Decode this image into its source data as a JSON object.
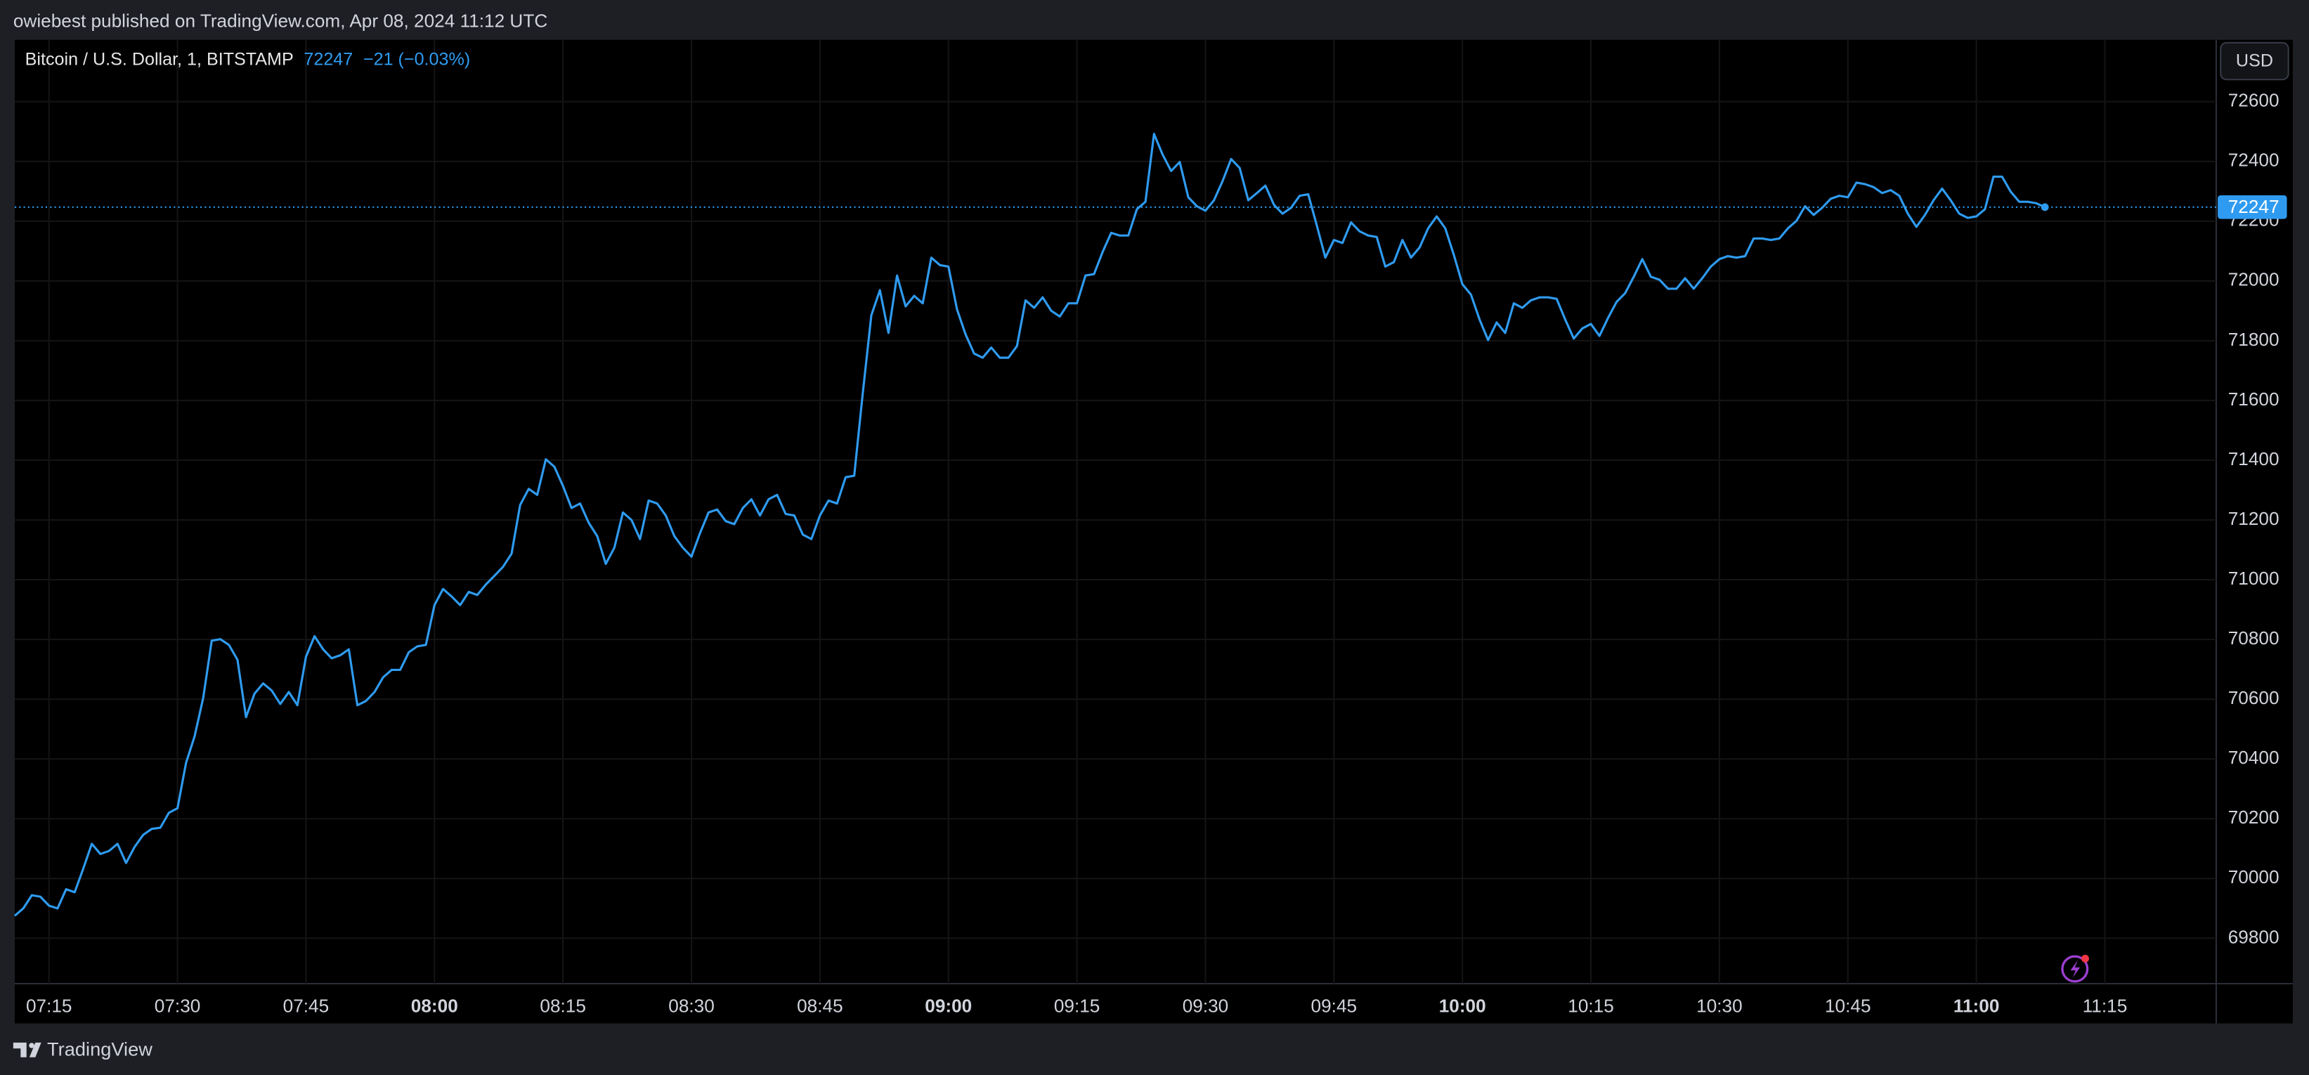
{
  "header": {
    "publisher": "owiebest published on TradingView.com, Apr 08, 2024 11:12 UTC"
  },
  "footer": {
    "brand": "TradingView"
  },
  "chart_data": {
    "type": "line",
    "title": "Bitcoin / U.S. Dollar, 1, BITSTAMP",
    "last_price": 72247,
    "change_label": "−21 (−0.03%)",
    "currency": "USD",
    "color": "#2f9bf0",
    "grid": true,
    "xlim": [
      "07:11",
      "11:28"
    ],
    "xticks": [
      "07:15",
      "07:30",
      "07:45",
      "08:00",
      "08:15",
      "08:30",
      "08:45",
      "09:00",
      "09:15",
      "09:30",
      "09:45",
      "10:00",
      "10:15",
      "10:30",
      "10:45",
      "11:00",
      "11:15"
    ],
    "ylim": [
      69648,
      72807
    ],
    "yticks": [
      69800,
      70000,
      70200,
      70400,
      70600,
      70800,
      71000,
      71200,
      71400,
      71600,
      71800,
      72000,
      72200,
      72400,
      72600
    ],
    "x": [
      "07:11",
      "07:12",
      "07:13",
      "07:14",
      "07:15",
      "07:16",
      "07:17",
      "07:18",
      "07:19",
      "07:20",
      "07:21",
      "07:22",
      "07:23",
      "07:24",
      "07:25",
      "07:26",
      "07:27",
      "07:28",
      "07:29",
      "07:30",
      "07:31",
      "07:32",
      "07:33",
      "07:34",
      "07:35",
      "07:36",
      "07:37",
      "07:38",
      "07:39",
      "07:40",
      "07:41",
      "07:42",
      "07:43",
      "07:44",
      "07:45",
      "07:46",
      "07:47",
      "07:48",
      "07:49",
      "07:50",
      "07:51",
      "07:52",
      "07:53",
      "07:54",
      "07:55",
      "07:56",
      "07:57",
      "07:58",
      "07:59",
      "08:00",
      "08:01",
      "08:02",
      "08:03",
      "08:04",
      "08:05",
      "08:06",
      "08:07",
      "08:08",
      "08:09",
      "08:10",
      "08:11",
      "08:12",
      "08:13",
      "08:14",
      "08:15",
      "08:16",
      "08:17",
      "08:18",
      "08:19",
      "08:20",
      "08:21",
      "08:22",
      "08:23",
      "08:24",
      "08:25",
      "08:26",
      "08:27",
      "08:28",
      "08:29",
      "08:30",
      "08:31",
      "08:32",
      "08:33",
      "08:34",
      "08:35",
      "08:36",
      "08:37",
      "08:38",
      "08:39",
      "08:40",
      "08:41",
      "08:42",
      "08:43",
      "08:44",
      "08:45",
      "08:46",
      "08:47",
      "08:48",
      "08:49",
      "08:50",
      "08:51",
      "08:52",
      "08:53",
      "08:54",
      "08:55",
      "08:56",
      "08:57",
      "08:58",
      "08:59",
      "09:00",
      "09:01",
      "09:02",
      "09:03",
      "09:04",
      "09:05",
      "09:06",
      "09:07",
      "09:08",
      "09:09",
      "09:10",
      "09:11",
      "09:12",
      "09:13",
      "09:14",
      "09:15",
      "09:16",
      "09:17",
      "09:18",
      "09:19",
      "09:20",
      "09:21",
      "09:22",
      "09:23",
      "09:24",
      "09:25",
      "09:26",
      "09:27",
      "09:28",
      "09:29",
      "09:30",
      "09:31",
      "09:32",
      "09:33",
      "09:34",
      "09:35",
      "09:36",
      "09:37",
      "09:38",
      "09:39",
      "09:40",
      "09:41",
      "09:42",
      "09:43",
      "09:44",
      "09:45",
      "09:46",
      "09:47",
      "09:48",
      "09:49",
      "09:50",
      "09:51",
      "09:52",
      "09:53",
      "09:54",
      "09:55",
      "09:56",
      "09:57",
      "09:58",
      "09:59",
      "10:00",
      "10:01",
      "10:02",
      "10:03",
      "10:04",
      "10:05",
      "10:06",
      "10:07",
      "10:08",
      "10:09",
      "10:10",
      "10:11",
      "10:12",
      "10:13",
      "10:14",
      "10:15",
      "10:16",
      "10:17",
      "10:18",
      "10:19",
      "10:20",
      "10:21",
      "10:22",
      "10:23",
      "10:24",
      "10:25",
      "10:26",
      "10:27",
      "10:28",
      "10:29",
      "10:30",
      "10:31",
      "10:32",
      "10:33",
      "10:34",
      "10:35",
      "10:36",
      "10:37",
      "10:38",
      "10:39",
      "10:40",
      "10:41",
      "10:42",
      "10:43",
      "10:44",
      "10:45",
      "10:46",
      "10:47",
      "10:48",
      "10:49",
      "10:50",
      "10:51",
      "10:52",
      "10:53",
      "10:54",
      "10:55",
      "10:56",
      "10:57",
      "10:58",
      "10:59",
      "11:00",
      "11:01",
      "11:02",
      "11:03",
      "11:04",
      "11:05",
      "11:06",
      "11:07",
      "11:08"
    ],
    "values": [
      69875,
      69900,
      69944,
      69939,
      69909,
      69900,
      69964,
      69954,
      70033,
      70116,
      70082,
      70092,
      70116,
      70052,
      70106,
      70146,
      70166,
      70170,
      70220,
      70235,
      70387,
      70476,
      70604,
      70796,
      70801,
      70782,
      70732,
      70540,
      70619,
      70653,
      70629,
      70584,
      70624,
      70580,
      70742,
      70811,
      70767,
      70737,
      70747,
      70767,
      70580,
      70594,
      70624,
      70673,
      70698,
      70698,
      70757,
      70777,
      70782,
      70915,
      70969,
      70944,
      70915,
      70959,
      70949,
      70984,
      71013,
      71043,
      71087,
      71250,
      71304,
      71284,
      71403,
      71378,
      71314,
      71240,
      71255,
      71191,
      71146,
      71053,
      71107,
      71225,
      71200,
      71136,
      71265,
      71255,
      71215,
      71146,
      71107,
      71077,
      71156,
      71225,
      71235,
      71196,
      71186,
      71240,
      71269,
      71215,
      71269,
      71284,
      71220,
      71215,
      71151,
      71136,
      71215,
      71265,
      71255,
      71343,
      71348,
      71624,
      71885,
      71969,
      71826,
      72018,
      71915,
      71950,
      71925,
      72078,
      72053,
      72048,
      71905,
      71821,
      71757,
      71743,
      71777,
      71743,
      71743,
      71782,
      71935,
      71910,
      71945,
      71900,
      71881,
      71925,
      71925,
      72018,
      72023,
      72097,
      72161,
      72152,
      72152,
      72240,
      72265,
      72492,
      72423,
      72368,
      72398,
      72280,
      72250,
      72235,
      72270,
      72334,
      72408,
      72378,
      72270,
      72294,
      72319,
      72255,
      72225,
      72245,
      72285,
      72290,
      72186,
      72078,
      72137,
      72127,
      72196,
      72166,
      72152,
      72147,
      72048,
      72063,
      72137,
      72078,
      72112,
      72176,
      72216,
      72176,
      72087,
      71989,
      71954,
      71871,
      71802,
      71861,
      71826,
      71925,
      71910,
      71935,
      71945,
      71945,
      71940,
      71871,
      71807,
      71841,
      71856,
      71816,
      71876,
      71930,
      71959,
      72014,
      72073,
      72014,
      72004,
      71974,
      71974,
      72009,
      71974,
      72009,
      72048,
      72073,
      72083,
      72078,
      72083,
      72142,
      72142,
      72137,
      72142,
      72176,
      72201,
      72250,
      72221,
      72245,
      72275,
      72285,
      72280,
      72329,
      72324,
      72314,
      72294,
      72304,
      72285,
      72225,
      72181,
      72221,
      72270,
      72309,
      72270,
      72225,
      72211,
      72216,
      72240,
      72349,
      72349,
      72299,
      72265,
      72265,
      72260,
      72247
    ]
  }
}
